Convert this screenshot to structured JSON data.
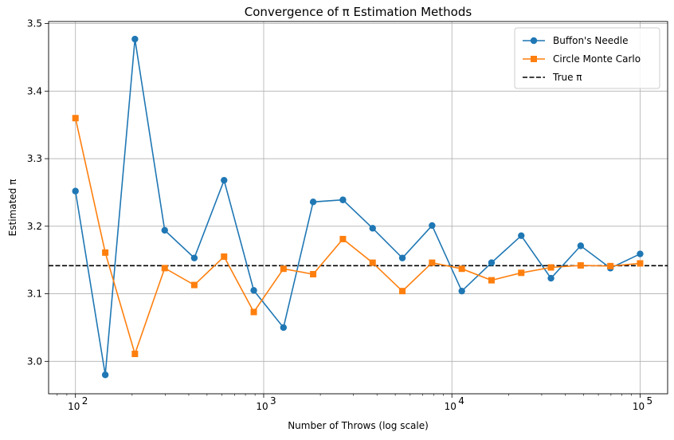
{
  "chart_data": {
    "type": "line",
    "title": "Convergence of π Estimation Methods",
    "xlabel": "Number of Throws (log scale)",
    "ylabel": "Estimated π",
    "xscale": "log",
    "xlim": [
      72,
      140000
    ],
    "ylim": [
      2.952,
      3.503
    ],
    "xticks": [
      {
        "value": 100,
        "base": "10",
        "exp": "2"
      },
      {
        "value": 1000,
        "base": "10",
        "exp": "3"
      },
      {
        "value": 10000,
        "base": "10",
        "exp": "4"
      },
      {
        "value": 100000,
        "base": "10",
        "exp": "5"
      }
    ],
    "yticks": [
      3.0,
      3.1,
      3.2,
      3.3,
      3.4,
      3.5
    ],
    "ytick_labels": [
      "3.0",
      "3.1",
      "3.2",
      "3.3",
      "3.4",
      "3.5"
    ],
    "grid": true,
    "legend_position": "top-right",
    "x": [
      100,
      144,
      207,
      298,
      428,
      616,
      886,
      1274,
      1832,
      2636,
      3792,
      5455,
      7847,
      11288,
      16237,
      23357,
      33598,
      48329,
      69519,
      100000
    ],
    "series": [
      {
        "name": "Buffon's Needle",
        "color": "#1f77b4",
        "marker": "circle",
        "values": [
          3.252,
          2.98,
          3.477,
          3.194,
          3.153,
          3.268,
          3.105,
          3.05,
          3.236,
          3.239,
          3.197,
          3.153,
          3.201,
          3.104,
          3.146,
          3.186,
          3.123,
          3.171,
          3.138,
          3.159
        ]
      },
      {
        "name": "Circle Monte Carlo",
        "color": "#ff7f0e",
        "marker": "square",
        "values": [
          3.36,
          3.161,
          3.011,
          3.138,
          3.113,
          3.155,
          3.073,
          3.137,
          3.129,
          3.181,
          3.146,
          3.104,
          3.146,
          3.137,
          3.12,
          3.131,
          3.139,
          3.142,
          3.141,
          3.145
        ]
      }
    ],
    "reference_line": {
      "name": "True π",
      "value": 3.14159,
      "color": "#000000",
      "style": "dashed"
    }
  }
}
